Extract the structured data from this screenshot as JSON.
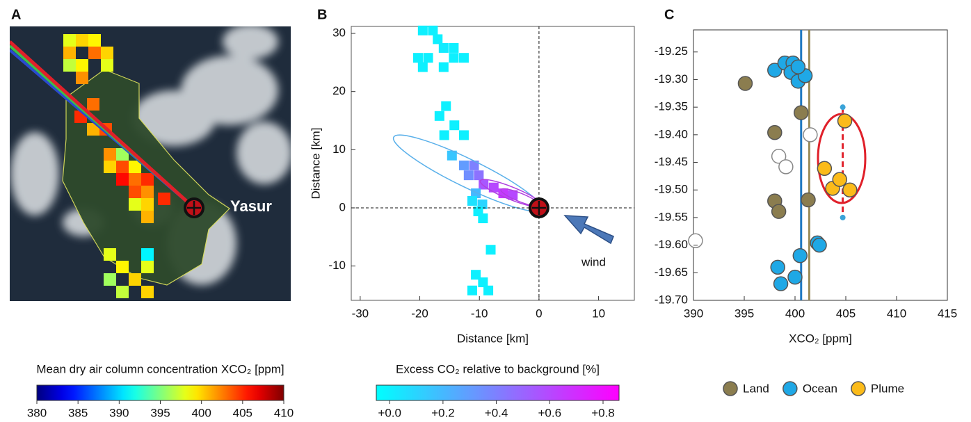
{
  "chart_data": [
    {
      "type": "map",
      "panel_label": "A",
      "annotation": "Yasur",
      "values": [
        398,
        400,
        399,
        401,
        403,
        400,
        397,
        399,
        398,
        402,
        405,
        403,
        401,
        404,
        402,
        400,
        404,
        399,
        406,
        403,
        405,
        404,
        402,
        405,
        400,
        398,
        401,
        396,
        391,
        398,
        399,
        400,
        397,
        400,
        396,
        398
      ],
      "colorbar": {
        "title": "Mean dry air column concentration XCO₂ [ppm]",
        "lim": [
          380,
          410
        ],
        "ticks": [
          380,
          385,
          390,
          395,
          400,
          405,
          410
        ]
      }
    },
    {
      "type": "cells",
      "panel_label": "B",
      "xlabel": "Distance [km]",
      "ylabel": "Distance [km]",
      "annotation": "wind",
      "xlim": [
        -31.5,
        16
      ],
      "ylim": [
        -15.9,
        31.2
      ],
      "xticks": [
        -30,
        -20,
        -10,
        0,
        10
      ],
      "yticks": [
        -10,
        0,
        10,
        20,
        30
      ],
      "x": [
        -19.5,
        -17.8,
        -17,
        -16,
        -14.3,
        -18.6,
        -20.3,
        -14.3,
        -12.6,
        -16,
        -19.5,
        -15.6,
        -16.7,
        -14.2,
        -12.6,
        -15.9,
        -14.6,
        -12.6,
        -10.9,
        -11.8,
        -10.1,
        -9.3,
        -7.6,
        -6,
        -4.4,
        -10.6,
        -11.2,
        -9.5,
        -10.2,
        -9.4,
        -8.1,
        -10.6,
        -9.4,
        -11.2,
        -8.5
      ],
      "y": [
        30.5,
        30.5,
        29,
        27.5,
        27.5,
        25.8,
        25.8,
        25.8,
        25.8,
        24.2,
        24.2,
        17.5,
        15.8,
        14.2,
        12.5,
        12.5,
        9,
        7.3,
        7.3,
        5.6,
        5.6,
        4,
        3.5,
        2.5,
        2.2,
        2.5,
        1.2,
        0.6,
        -0.6,
        -1.8,
        -7.2,
        -11.5,
        -12.8,
        -14.2,
        -14.2
      ],
      "values": [
        0,
        0,
        0,
        0.02,
        0,
        0,
        0,
        0,
        0,
        0,
        0,
        0,
        0,
        0,
        0,
        0,
        0.15,
        0.3,
        0.4,
        0.35,
        0.45,
        0.55,
        0.6,
        0.65,
        0.6,
        0.2,
        0.05,
        0.1,
        0,
        0,
        0,
        0,
        0,
        0,
        0
      ],
      "colorbar": {
        "title": "Excess CO₂ relative to background [%]",
        "lim": [
          -0.05,
          0.86
        ],
        "ticks": [
          {
            "value": 0,
            "label": "+0.0"
          },
          {
            "value": 0.2,
            "label": "+0.2"
          },
          {
            "value": 0.4,
            "label": "+0.4"
          },
          {
            "value": 0.6,
            "label": "+0.6"
          },
          {
            "value": 0.8,
            "label": "+0.8"
          }
        ]
      }
    },
    {
      "type": "scatter",
      "panel_label": "C",
      "xlabel": "XCO₂ [ppm]",
      "xlim": [
        390,
        415
      ],
      "ylim": [
        -19.7,
        -19.21
      ],
      "xticks": [
        390,
        395,
        400,
        405,
        410,
        415
      ],
      "yticks": [
        -19.25,
        {
          "value": -19.3,
          "label": "-19.30"
        },
        -19.35,
        {
          "value": -19.4,
          "label": "-19.40"
        },
        -19.45,
        {
          "value": -19.5,
          "label": "-19.50"
        },
        -19.55,
        {
          "value": -19.6,
          "label": "-19.60"
        },
        -19.65,
        {
          "value": -19.7,
          "label": "-19.70"
        }
      ],
      "reference_lines": [
        {
          "value": 400.6,
          "color": "#1f78c1"
        },
        {
          "value": 401.4,
          "color": "#9b8d5a"
        }
      ],
      "series": [
        {
          "color": "#ffffff",
          "x": [
            401.5,
            398.4,
            399.1,
            390.2
          ],
          "values": [
            -19.4,
            -19.439,
            -19.458,
            -19.592
          ]
        },
        {
          "name": "Land",
          "color": "#8b7d4f",
          "x": [
            395.1,
            400.6,
            398.0,
            398.0,
            398.4,
            401.3
          ],
          "values": [
            -19.307,
            -19.36,
            -19.396,
            -19.52,
            -19.539,
            -19.518
          ]
        },
        {
          "name": "Ocean",
          "color": "#1fa8e6",
          "x": [
            398.0,
            399.0,
            399.8,
            399.6,
            400.3,
            401.0,
            400.3,
            400.5,
            402.2,
            402.4,
            398.3,
            398.6,
            400.0
          ],
          "values": [
            -19.283,
            -19.27,
            -19.27,
            -19.287,
            -19.303,
            -19.293,
            -19.277,
            -19.619,
            -19.596,
            -19.6,
            -19.64,
            -19.67,
            -19.658
          ]
        },
        {
          "name": "Plume",
          "color": "#fbbb1a",
          "x": [
            404.9,
            402.9,
            403.7,
            404.4,
            405.4
          ],
          "values": [
            -19.375,
            -19.461,
            -19.497,
            -19.481,
            -19.5
          ]
        }
      ],
      "error_bar": {
        "x": 404.7,
        "values": [
          -19.35,
          -19.55
        ]
      }
    }
  ]
}
